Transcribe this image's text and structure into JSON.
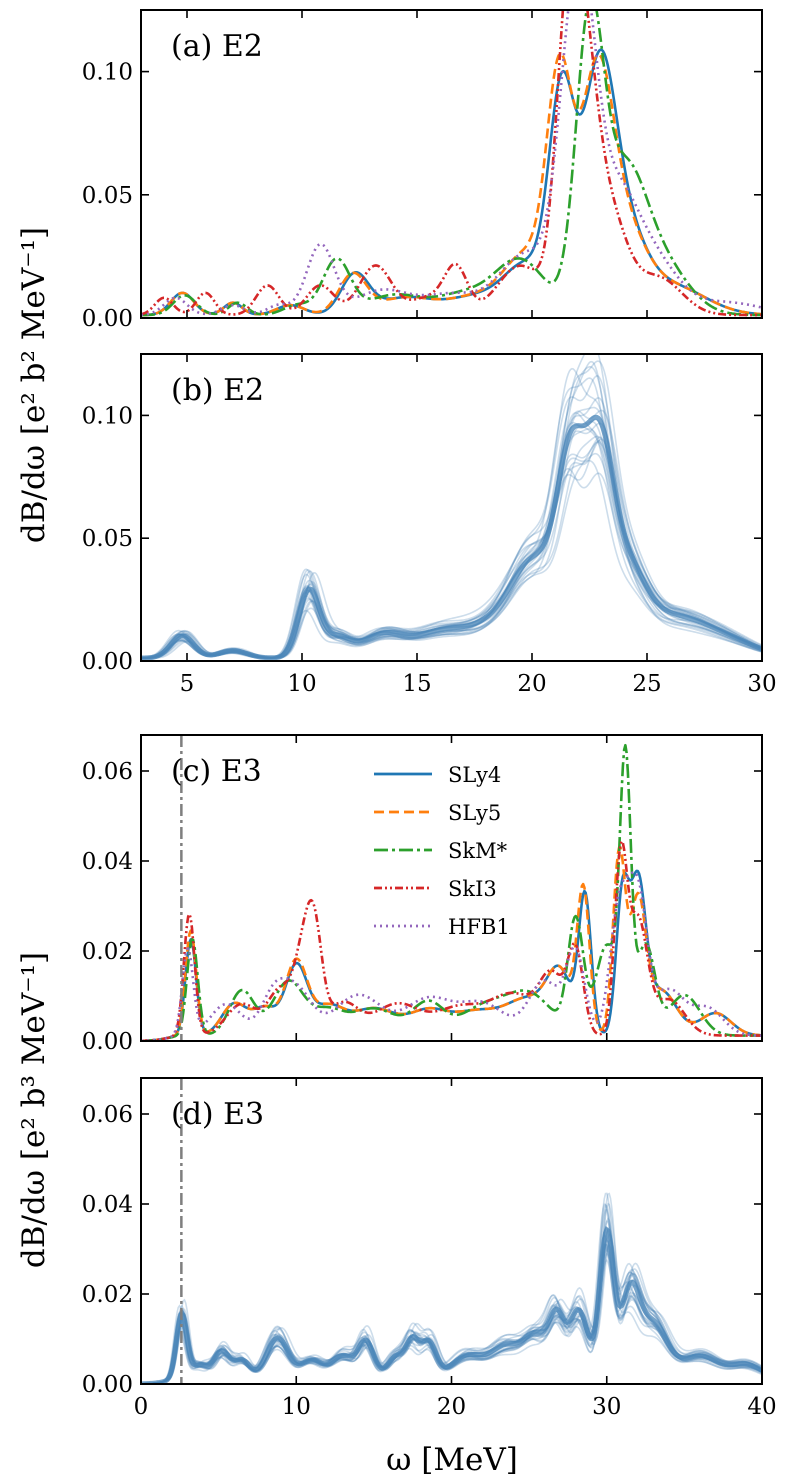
{
  "figure": {
    "ylabel_top": "dB/dω  [e² b² MeV⁻¹]",
    "ylabel_bottom": "dB/dω  [e² b³ MeV⁻¹]",
    "xlabel": "ω  [MeV]"
  },
  "colors": {
    "SLy4": "#1f77b4",
    "SLy5": "#ff7f0e",
    "SkM*": "#2ca02c",
    "SkI3": "#d62728",
    "HFB1": "#9467bd",
    "ensemble": "#4a86b8",
    "threshold": "#7f7f7f"
  },
  "legend": [
    "SLy4",
    "SLy5",
    "SkM*",
    "SkI3",
    "HFB1"
  ],
  "chart_data": [
    {
      "panel": "a",
      "label": "(a) E2",
      "type": "line",
      "xlim": [
        3,
        30
      ],
      "ylim": [
        0,
        0.125
      ],
      "xticks": [
        5,
        10,
        15,
        20,
        25,
        30
      ],
      "yticks": [
        0.0,
        0.05,
        0.1
      ],
      "yticklabels": [
        "0.00",
        "0.05",
        "0.10"
      ],
      "show_xticklabels": false,
      "peaks": {
        "SLy4": [
          [
            4.8,
            0.009,
            0.5
          ],
          [
            7.0,
            0.005,
            0.4
          ],
          [
            9.5,
            0.004,
            0.6
          ],
          [
            12.3,
            0.016,
            0.6
          ],
          [
            14.5,
            0.007,
            1.2
          ],
          [
            17.5,
            0.007,
            1.2
          ],
          [
            19.8,
            0.02,
            1.0
          ],
          [
            21.3,
            0.085,
            0.55
          ],
          [
            22.9,
            0.09,
            0.7
          ],
          [
            24.0,
            0.03,
            0.9
          ],
          [
            26.0,
            0.012,
            1.5
          ]
        ],
        "SLy5": [
          [
            4.8,
            0.009,
            0.5
          ],
          [
            7.0,
            0.005,
            0.4
          ],
          [
            9.5,
            0.004,
            0.6
          ],
          [
            12.2,
            0.016,
            0.6
          ],
          [
            14.5,
            0.007,
            1.2
          ],
          [
            17.5,
            0.007,
            1.2
          ],
          [
            19.8,
            0.024,
            1.0
          ],
          [
            21.2,
            0.09,
            0.55
          ],
          [
            22.8,
            0.09,
            0.7
          ],
          [
            24.0,
            0.03,
            0.9
          ],
          [
            26.0,
            0.012,
            1.5
          ]
        ],
        "SkM*": [
          [
            4.9,
            0.008,
            0.5
          ],
          [
            7.2,
            0.005,
            0.4
          ],
          [
            9.8,
            0.004,
            0.6
          ],
          [
            11.5,
            0.022,
            0.6
          ],
          [
            14.0,
            0.008,
            1.2
          ],
          [
            17.0,
            0.008,
            1.2
          ],
          [
            19.5,
            0.022,
            1.1
          ],
          [
            22.5,
            0.115,
            0.6
          ],
          [
            24.0,
            0.05,
            0.9
          ],
          [
            25.5,
            0.022,
            1.2
          ]
        ],
        "SkI3": [
          [
            4.0,
            0.007,
            0.4
          ],
          [
            5.8,
            0.009,
            0.4
          ],
          [
            8.5,
            0.012,
            0.5
          ],
          [
            10.8,
            0.012,
            0.6
          ],
          [
            13.2,
            0.02,
            0.7
          ],
          [
            15.5,
            0.007,
            0.8
          ],
          [
            16.7,
            0.018,
            0.5
          ],
          [
            19.5,
            0.02,
            1.0
          ],
          [
            21.5,
            0.09,
            0.5
          ],
          [
            22.2,
            0.09,
            0.6
          ],
          [
            23.3,
            0.04,
            0.8
          ],
          [
            25.5,
            0.015,
            1.0
          ]
        ],
        "HFB1": [
          [
            4.5,
            0.007,
            0.5
          ],
          [
            7.0,
            0.004,
            0.5
          ],
          [
            9.0,
            0.004,
            0.5
          ],
          [
            10.8,
            0.028,
            0.6
          ],
          [
            13.5,
            0.01,
            1.2
          ],
          [
            16.5,
            0.008,
            1.2
          ],
          [
            19.8,
            0.025,
            1.2
          ],
          [
            21.6,
            0.07,
            0.6
          ],
          [
            22.3,
            0.085,
            0.6
          ],
          [
            23.5,
            0.04,
            0.9
          ],
          [
            25.0,
            0.025,
            1.2
          ],
          [
            28.5,
            0.005,
            1.5
          ]
        ]
      }
    },
    {
      "panel": "b",
      "label": "(b) E2",
      "type": "line",
      "xlim": [
        3,
        30
      ],
      "ylim": [
        0,
        0.125
      ],
      "xticks": [
        5,
        10,
        15,
        20,
        25,
        30
      ],
      "xticklabels": [
        "5",
        "10",
        "15",
        "20",
        "25",
        "30"
      ],
      "yticks": [
        0.0,
        0.05,
        0.1
      ],
      "yticklabels": [
        "0.00",
        "0.05",
        "0.10"
      ],
      "show_xticklabels": true,
      "ensemble_size": 24,
      "mean_peaks": [
        [
          4.8,
          0.009,
          0.5
        ],
        [
          7.0,
          0.003,
          0.6
        ],
        [
          10.3,
          0.027,
          0.45
        ],
        [
          11.5,
          0.008,
          0.6
        ],
        [
          13.5,
          0.009,
          0.9
        ],
        [
          16.0,
          0.01,
          1.2
        ],
        [
          18.5,
          0.012,
          1.2
        ],
        [
          20.2,
          0.035,
          1.0
        ],
        [
          21.7,
          0.07,
          0.6
        ],
        [
          22.9,
          0.07,
          0.6
        ],
        [
          24.0,
          0.035,
          0.9
        ],
        [
          26.0,
          0.012,
          1.2
        ],
        [
          28.0,
          0.009,
          1.5
        ]
      ]
    },
    {
      "panel": "c",
      "label": "(c) E3",
      "type": "line",
      "xlim": [
        0,
        40
      ],
      "ylim": [
        0,
        0.068
      ],
      "xticks": [
        0,
        10,
        20,
        30,
        40
      ],
      "yticks": [
        0.0,
        0.02,
        0.04,
        0.06
      ],
      "yticklabels": [
        "0.00",
        "0.02",
        "0.04",
        "0.06"
      ],
      "show_xticklabels": false,
      "threshold_x": 2.6,
      "peaks": {
        "SLy4": [
          [
            3.2,
            0.022,
            0.35
          ],
          [
            6.0,
            0.007,
            0.8
          ],
          [
            8.0,
            0.006,
            0.8
          ],
          [
            10.0,
            0.015,
            0.7
          ],
          [
            12.0,
            0.006,
            1.0
          ],
          [
            15.0,
            0.006,
            1.5
          ],
          [
            18.5,
            0.005,
            1.2
          ],
          [
            21.5,
            0.005,
            1.5
          ],
          [
            25.0,
            0.008,
            1.5
          ],
          [
            27.0,
            0.012,
            0.8
          ],
          [
            28.6,
            0.03,
            0.4
          ],
          [
            31.0,
            0.03,
            0.4
          ],
          [
            32.0,
            0.032,
            0.5
          ],
          [
            33.5,
            0.01,
            1.0
          ],
          [
            37.0,
            0.005,
            1.0
          ]
        ],
        "SLy5": [
          [
            3.2,
            0.024,
            0.35
          ],
          [
            6.0,
            0.007,
            0.8
          ],
          [
            8.0,
            0.006,
            0.8
          ],
          [
            10.0,
            0.016,
            0.7
          ],
          [
            12.0,
            0.006,
            1.0
          ],
          [
            15.0,
            0.006,
            1.5
          ],
          [
            18.5,
            0.005,
            1.2
          ],
          [
            21.5,
            0.005,
            1.5
          ],
          [
            25.0,
            0.008,
            1.5
          ],
          [
            27.0,
            0.012,
            0.8
          ],
          [
            28.5,
            0.031,
            0.4
          ],
          [
            30.8,
            0.04,
            0.4
          ],
          [
            32.0,
            0.028,
            0.5
          ],
          [
            33.5,
            0.01,
            1.0
          ],
          [
            37.0,
            0.005,
            1.0
          ]
        ],
        "SkM*": [
          [
            3.3,
            0.022,
            0.35
          ],
          [
            6.5,
            0.01,
            0.8
          ],
          [
            9.5,
            0.012,
            1.0
          ],
          [
            12.0,
            0.005,
            1.0
          ],
          [
            15.0,
            0.006,
            1.5
          ],
          [
            18.5,
            0.007,
            1.0
          ],
          [
            22.0,
            0.006,
            1.5
          ],
          [
            25.0,
            0.009,
            1.5
          ],
          [
            28.0,
            0.025,
            0.5
          ],
          [
            30.0,
            0.02,
            0.7
          ],
          [
            31.2,
            0.058,
            0.35
          ],
          [
            32.5,
            0.02,
            0.6
          ],
          [
            35.0,
            0.009,
            1.0
          ]
        ],
        "SkI3": [
          [
            3.1,
            0.028,
            0.35
          ],
          [
            6.5,
            0.007,
            1.0
          ],
          [
            9.0,
            0.01,
            0.8
          ],
          [
            10.5,
            0.017,
            0.6
          ],
          [
            11.2,
            0.018,
            0.5
          ],
          [
            13.0,
            0.007,
            1.0
          ],
          [
            16.5,
            0.007,
            1.5
          ],
          [
            20.5,
            0.006,
            1.5
          ],
          [
            24.0,
            0.009,
            1.5
          ],
          [
            26.5,
            0.012,
            0.8
          ],
          [
            28.0,
            0.018,
            0.5
          ],
          [
            30.9,
            0.038,
            0.4
          ],
          [
            32.0,
            0.025,
            0.6
          ],
          [
            34.0,
            0.008,
            1.0
          ]
        ],
        "HFB1": [
          [
            3.0,
            0.02,
            0.35
          ],
          [
            5.5,
            0.007,
            1.0
          ],
          [
            8.5,
            0.008,
            0.8
          ],
          [
            10.0,
            0.01,
            1.0
          ],
          [
            14.0,
            0.009,
            1.5
          ],
          [
            18.5,
            0.008,
            1.5
          ],
          [
            22.0,
            0.007,
            1.5
          ],
          [
            26.0,
            0.012,
            1.0
          ],
          [
            28.0,
            0.018,
            0.6
          ],
          [
            30.8,
            0.028,
            0.6
          ],
          [
            32.0,
            0.03,
            0.6
          ],
          [
            34.0,
            0.01,
            1.0
          ],
          [
            36.5,
            0.006,
            1.0
          ]
        ]
      }
    },
    {
      "panel": "d",
      "label": "(d) E3",
      "type": "line",
      "xlim": [
        0,
        40
      ],
      "ylim": [
        0,
        0.068
      ],
      "xticks": [
        0,
        10,
        20,
        30,
        40
      ],
      "xticklabels": [
        "0",
        "10",
        "20",
        "30",
        "40"
      ],
      "yticks": [
        0.0,
        0.02,
        0.04,
        0.06
      ],
      "yticklabels": [
        "0.00",
        "0.02",
        "0.04",
        "0.06"
      ],
      "show_xticklabels": true,
      "threshold_x": 2.6,
      "ensemble_size": 24,
      "mean_peaks": [
        [
          2.6,
          0.016,
          0.35
        ],
        [
          3.8,
          0.003,
          0.5
        ],
        [
          5.2,
          0.006,
          0.5
        ],
        [
          6.5,
          0.004,
          0.5
        ],
        [
          8.8,
          0.009,
          0.7
        ],
        [
          11.0,
          0.004,
          0.7
        ],
        [
          13.0,
          0.005,
          0.7
        ],
        [
          14.5,
          0.008,
          0.5
        ],
        [
          16.5,
          0.005,
          0.6
        ],
        [
          17.5,
          0.007,
          0.4
        ],
        [
          18.5,
          0.008,
          0.5
        ],
        [
          21.0,
          0.005,
          1.0
        ],
        [
          23.5,
          0.007,
          1.0
        ],
        [
          25.5,
          0.009,
          0.8
        ],
        [
          26.8,
          0.012,
          0.5
        ],
        [
          28.2,
          0.015,
          0.6
        ],
        [
          30.0,
          0.032,
          0.45
        ],
        [
          31.5,
          0.018,
          0.6
        ],
        [
          33.0,
          0.012,
          0.9
        ],
        [
          36.0,
          0.005,
          1.2
        ],
        [
          39.0,
          0.003,
          1.0
        ]
      ]
    }
  ]
}
